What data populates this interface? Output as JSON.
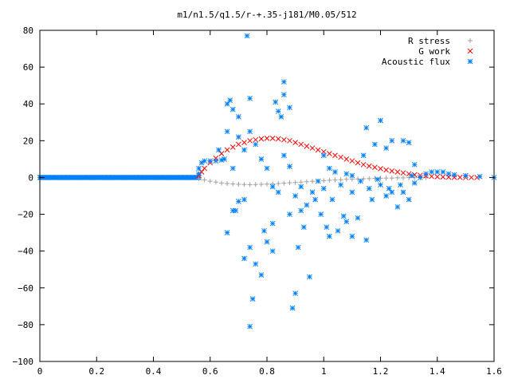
{
  "chart_data": {
    "type": "scatter",
    "title": "m1/n1.5/q1.5/r-+.35-j181/M0.05/512",
    "xlabel": "",
    "ylabel": "",
    "xlim": [
      0,
      1.6
    ],
    "ylim": [
      -100,
      80
    ],
    "x_ticks": [
      "0",
      "0.2",
      "0.4",
      "0.6",
      "0.8",
      "1",
      "1.2",
      "1.4",
      "1.6"
    ],
    "y_ticks": [
      "80",
      "60",
      "40",
      "20",
      "0",
      "−20",
      "−40",
      "−60",
      "−80",
      "−100"
    ],
    "x_tick_values": [
      0,
      0.2,
      0.4,
      0.6,
      0.8,
      1.0,
      1.2,
      1.4,
      1.6
    ],
    "y_tick_values": [
      80,
      60,
      40,
      20,
      0,
      -20,
      -40,
      -60,
      -80,
      -100
    ],
    "grid": false,
    "legend_position": "top-right",
    "series": [
      {
        "name": "R stress",
        "marker": "plus",
        "color": "#a0a0a0",
        "points": [
          [
            0.56,
            -0.5
          ],
          [
            0.58,
            -1.3
          ],
          [
            0.6,
            -2
          ],
          [
            0.62,
            -2.5
          ],
          [
            0.64,
            -3
          ],
          [
            0.66,
            -3.3
          ],
          [
            0.68,
            -3.5
          ],
          [
            0.7,
            -3.7
          ],
          [
            0.72,
            -3.8
          ],
          [
            0.74,
            -3.9
          ],
          [
            0.76,
            -3.8
          ],
          [
            0.78,
            -3.7
          ],
          [
            0.8,
            -3.6
          ],
          [
            0.82,
            -3.5
          ],
          [
            0.84,
            -3.3
          ],
          [
            0.86,
            -3.1
          ],
          [
            0.88,
            -2.9
          ],
          [
            0.9,
            -2.7
          ],
          [
            0.92,
            -2.5
          ],
          [
            0.94,
            -2.3
          ],
          [
            0.96,
            -2.1
          ],
          [
            0.98,
            -1.9
          ],
          [
            1.0,
            -1.7
          ],
          [
            1.02,
            -1.5
          ],
          [
            1.04,
            -1.3
          ],
          [
            1.06,
            -1.2
          ],
          [
            1.08,
            -1.0
          ],
          [
            1.1,
            -0.9
          ],
          [
            1.12,
            -0.8
          ],
          [
            1.14,
            -0.7
          ],
          [
            1.16,
            -0.6
          ],
          [
            1.18,
            -0.5
          ],
          [
            1.2,
            -0.4
          ],
          [
            1.22,
            -0.3
          ],
          [
            1.24,
            -0.3
          ],
          [
            1.26,
            -0.2
          ],
          [
            1.28,
            -0.2
          ],
          [
            1.3,
            -0.1
          ],
          [
            1.32,
            -0.1
          ],
          [
            1.34,
            -0.1
          ],
          [
            1.36,
            0
          ]
        ]
      },
      {
        "name": "G work",
        "marker": "cross",
        "color": "#ff0000",
        "points": [
          [
            0.56,
            1
          ],
          [
            0.57,
            3
          ],
          [
            0.58,
            5
          ],
          [
            0.6,
            8
          ],
          [
            0.62,
            10.5
          ],
          [
            0.64,
            13
          ],
          [
            0.66,
            15
          ],
          [
            0.68,
            16.5
          ],
          [
            0.7,
            18
          ],
          [
            0.72,
            19
          ],
          [
            0.74,
            20
          ],
          [
            0.76,
            20.5
          ],
          [
            0.78,
            21
          ],
          [
            0.8,
            21.3
          ],
          [
            0.82,
            21.3
          ],
          [
            0.84,
            21
          ],
          [
            0.86,
            20.5
          ],
          [
            0.88,
            20
          ],
          [
            0.9,
            19
          ],
          [
            0.92,
            18
          ],
          [
            0.94,
            17
          ],
          [
            0.96,
            16
          ],
          [
            0.98,
            15
          ],
          [
            1.0,
            14
          ],
          [
            1.02,
            13
          ],
          [
            1.04,
            12
          ],
          [
            1.06,
            11
          ],
          [
            1.08,
            10
          ],
          [
            1.1,
            9
          ],
          [
            1.12,
            8
          ],
          [
            1.14,
            7
          ],
          [
            1.16,
            6.2
          ],
          [
            1.18,
            5.5
          ],
          [
            1.2,
            4.8
          ],
          [
            1.22,
            4.1
          ],
          [
            1.24,
            3.5
          ],
          [
            1.26,
            3
          ],
          [
            1.28,
            2.5
          ],
          [
            1.3,
            2
          ],
          [
            1.32,
            1.5
          ],
          [
            1.34,
            1.2
          ],
          [
            1.36,
            0.9
          ],
          [
            1.38,
            0.6
          ],
          [
            1.4,
            0.4
          ],
          [
            1.42,
            0.3
          ],
          [
            1.44,
            0.2
          ],
          [
            1.46,
            0.1
          ],
          [
            1.48,
            0.1
          ],
          [
            1.5,
            0
          ],
          [
            1.52,
            0
          ],
          [
            1.54,
            0
          ]
        ]
      },
      {
        "name": "Acoustic flux",
        "marker": "star",
        "color": "#0080ff",
        "points": [
          [
            0.56,
            2
          ],
          [
            0.56,
            5
          ],
          [
            0.57,
            8
          ],
          [
            0.58,
            9
          ],
          [
            0.6,
            9
          ],
          [
            0.62,
            9
          ],
          [
            0.64,
            9.5
          ],
          [
            0.66,
            40
          ],
          [
            0.67,
            42
          ],
          [
            0.68,
            37
          ],
          [
            0.7,
            33
          ],
          [
            0.66,
            25
          ],
          [
            0.68,
            -18
          ],
          [
            0.66,
            -30
          ],
          [
            0.69,
            -18
          ],
          [
            0.7,
            -13
          ],
          [
            0.72,
            -12
          ],
          [
            0.72,
            -44
          ],
          [
            0.74,
            -38
          ],
          [
            0.73,
            77
          ],
          [
            0.74,
            43
          ],
          [
            0.74,
            -81
          ],
          [
            0.75,
            -66
          ],
          [
            0.76,
            -47
          ],
          [
            0.78,
            -53
          ],
          [
            0.79,
            -29
          ],
          [
            0.8,
            -35
          ],
          [
            0.82,
            -25
          ],
          [
            0.82,
            -40
          ],
          [
            0.83,
            41
          ],
          [
            0.84,
            36
          ],
          [
            0.85,
            33
          ],
          [
            0.86,
            45
          ],
          [
            0.86,
            52
          ],
          [
            0.88,
            38
          ],
          [
            0.88,
            -20
          ],
          [
            0.89,
            -71
          ],
          [
            0.9,
            -63
          ],
          [
            0.91,
            -38
          ],
          [
            0.92,
            -18
          ],
          [
            0.93,
            -27
          ],
          [
            0.95,
            -54
          ],
          [
            0.97,
            -12
          ],
          [
            0.99,
            -20
          ],
          [
            1.01,
            -27
          ],
          [
            1.02,
            -32
          ],
          [
            1.05,
            -29
          ],
          [
            1.07,
            -21
          ],
          [
            1.08,
            -24
          ],
          [
            1.1,
            -32
          ],
          [
            1.12,
            -22
          ],
          [
            1.15,
            -34
          ],
          [
            1.17,
            -12
          ],
          [
            1.2,
            -4
          ],
          [
            1.22,
            -10
          ],
          [
            1.24,
            -8
          ],
          [
            1.26,
            -16
          ],
          [
            1.28,
            -8
          ],
          [
            1.3,
            -12
          ],
          [
            1.32,
            -3
          ],
          [
            1.34,
            0
          ],
          [
            1.36,
            2
          ],
          [
            1.38,
            3
          ],
          [
            1.4,
            3
          ],
          [
            1.42,
            3
          ],
          [
            1.44,
            2
          ],
          [
            1.46,
            1.5
          ],
          [
            1.5,
            1
          ],
          [
            1.55,
            0.5
          ],
          [
            1.6,
            0
          ],
          [
            1.0,
            12
          ],
          [
            1.02,
            5
          ],
          [
            1.04,
            3
          ],
          [
            1.08,
            2
          ],
          [
            1.1,
            1
          ],
          [
            1.14,
            12
          ],
          [
            1.15,
            27
          ],
          [
            1.18,
            18
          ],
          [
            1.2,
            31
          ],
          [
            1.22,
            16
          ],
          [
            1.24,
            20
          ],
          [
            1.28,
            20
          ],
          [
            1.3,
            19
          ],
          [
            1.32,
            7
          ],
          [
            0.63,
            15
          ],
          [
            0.65,
            10
          ],
          [
            0.68,
            5
          ],
          [
            0.7,
            22
          ],
          [
            0.72,
            15
          ],
          [
            0.74,
            25
          ],
          [
            0.76,
            18
          ],
          [
            0.78,
            10
          ],
          [
            0.8,
            5
          ],
          [
            0.82,
            -5
          ],
          [
            0.84,
            -8
          ],
          [
            0.86,
            12
          ],
          [
            0.88,
            6
          ],
          [
            0.9,
            -10
          ],
          [
            0.92,
            -5
          ],
          [
            0.94,
            -15
          ],
          [
            0.96,
            -8
          ],
          [
            0.98,
            -2
          ],
          [
            1.0,
            -6
          ],
          [
            1.03,
            -12
          ],
          [
            1.06,
            -4
          ],
          [
            1.1,
            -8
          ],
          [
            1.13,
            -2
          ],
          [
            1.16,
            -6
          ],
          [
            1.19,
            -1
          ],
          [
            1.23,
            -6
          ],
          [
            1.27,
            -4
          ],
          [
            1.31,
            1
          ]
        ]
      }
    ]
  }
}
